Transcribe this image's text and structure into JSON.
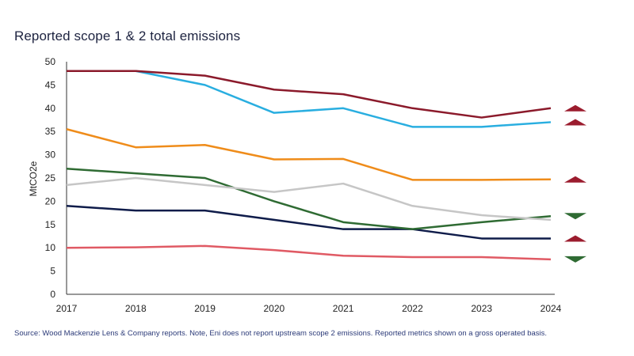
{
  "chart_data": {
    "type": "line",
    "title": "Reported scope 1 & 2 total emissions",
    "ylabel": "MtCO2e",
    "xlabel": "",
    "ylim": [
      0,
      50
    ],
    "y_ticks": [
      "0",
      "5",
      "10",
      "15",
      "20",
      "25",
      "30",
      "35",
      "40",
      "45",
      "50"
    ],
    "x": [
      "2017",
      "2018",
      "2019",
      "2020",
      "2021",
      "2022",
      "2023",
      "2024"
    ],
    "grid": false,
    "series": [
      {
        "color": "#8b1a2b",
        "values": [
          48,
          48,
          47,
          44,
          43,
          40,
          38,
          40
        ],
        "trend": "up",
        "trend_color": "#9b1c2e"
      },
      {
        "color": "#29aee0",
        "values": [
          48,
          48,
          45,
          39,
          40,
          36,
          36,
          37
        ],
        "trend": "up",
        "trend_color": "#9b1c2e"
      },
      {
        "color": "#ef8c1a",
        "values": [
          35.5,
          31.6,
          32.1,
          29,
          29.1,
          24.6,
          24.6,
          24.7
        ],
        "trend": "up",
        "trend_color": "#9b1c2e"
      },
      {
        "color": "#c6c6c6",
        "values": [
          23.5,
          25,
          23.5,
          22,
          23.8,
          19,
          17,
          16
        ],
        "trend": null
      },
      {
        "color": "#2f6b33",
        "values": [
          27,
          26,
          25,
          20,
          15.5,
          14,
          15.5,
          16.8
        ],
        "trend": "down",
        "trend_color": "#2f6b33"
      },
      {
        "color": "#0f1c4a",
        "values": [
          19,
          18,
          18,
          16,
          14,
          14,
          12,
          12
        ],
        "trend": "up",
        "trend_color": "#9b1c2e"
      },
      {
        "color": "#e05a64",
        "values": [
          10,
          10.1,
          10.4,
          9.5,
          8.3,
          8,
          8,
          7.5
        ],
        "trend": "down",
        "trend_color": "#2f6b33"
      }
    ]
  },
  "source": "Source: Wood Mackenzie Lens & Company reports. Note, Eni does not report upstream scope 2 emissions. Reported metrics shown on a gross operated basis."
}
